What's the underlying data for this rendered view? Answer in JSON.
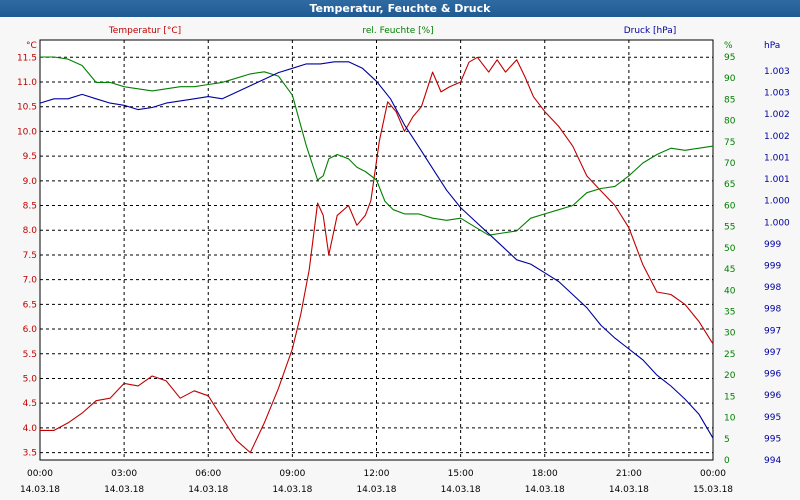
{
  "window": {
    "title": "Temperatur, Feuchte & Druck"
  },
  "chart_data": {
    "type": "line",
    "title": "Temperatur, Feuchte & Druck",
    "colors": {
      "temperature": "#c00000",
      "humidity": "#008000",
      "pressure": "#0000a0",
      "grid": "#000000"
    },
    "x_tick_times": [
      "00:00",
      "03:00",
      "06:00",
      "09:00",
      "12:00",
      "15:00",
      "18:00",
      "21:00",
      "00:00"
    ],
    "x_tick_dates": [
      "14.03.18",
      "14.03.18",
      "14.03.18",
      "14.03.18",
      "14.03.18",
      "14.03.18",
      "14.03.18",
      "14.03.18",
      "15.03.18"
    ],
    "axes": {
      "temperature": {
        "label": "Temperatur [°C]",
        "unit": "°C",
        "range": [
          3.35,
          11.85
        ],
        "ticks": [
          "11.5",
          "11.0",
          "10.5",
          "10.0",
          "9.5",
          "9.0",
          "8.5",
          "8.0",
          "7.5",
          "7.0",
          "6.5",
          "6.0",
          "5.5",
          "5.0",
          "4.5",
          "4.0",
          "3.5"
        ]
      },
      "humidity": {
        "label": "rel. Feuchte [%]",
        "unit": "%",
        "range": [
          0,
          99
        ],
        "ticks": [
          "95",
          "90",
          "85",
          "80",
          "75",
          "70",
          "65",
          "60",
          "55",
          "50",
          "45",
          "40",
          "35",
          "30",
          "25",
          "20",
          "15",
          "10",
          "5",
          "0"
        ]
      },
      "pressure": {
        "label": "Druck [hPa]",
        "unit": "hPa",
        "range": [
          994.0,
          1003.65
        ],
        "ticks": [
          "1.003",
          "1.003",
          "1.002",
          "1.002",
          "1.001",
          "1.001",
          "1.000",
          "1.000",
          "999",
          "999",
          "998",
          "998",
          "997",
          "997",
          "996",
          "996",
          "995",
          "995",
          "994"
        ]
      }
    },
    "series": [
      {
        "name": "Temperatur [°C]",
        "axis": "temperature",
        "hours": [
          0,
          0.5,
          1,
          1.5,
          2,
          2.5,
          3,
          3.5,
          4,
          4.5,
          5,
          5.5,
          6,
          6.5,
          7,
          7.5,
          8,
          8.5,
          9,
          9.3,
          9.6,
          9.9,
          10.1,
          10.3,
          10.6,
          11,
          11.3,
          11.6,
          11.8,
          12.1,
          12.4,
          12.7,
          13,
          13.3,
          13.6,
          14,
          14.3,
          14.6,
          15,
          15.3,
          15.6,
          16,
          16.3,
          16.6,
          17,
          17.3,
          17.6,
          18,
          18.5,
          19,
          19.5,
          20,
          20.5,
          21,
          21.5,
          22,
          22.5,
          23,
          23.5,
          24
        ],
        "values": [
          3.95,
          3.95,
          4.1,
          4.3,
          4.55,
          4.6,
          4.9,
          4.85,
          5.05,
          4.95,
          4.6,
          4.75,
          4.65,
          4.2,
          3.75,
          3.5,
          4.1,
          4.8,
          5.6,
          6.3,
          7.2,
          8.55,
          8.3,
          7.5,
          8.3,
          8.5,
          8.1,
          8.3,
          8.6,
          9.8,
          10.6,
          10.4,
          10.0,
          10.3,
          10.5,
          11.2,
          10.8,
          10.9,
          11.0,
          11.4,
          11.5,
          11.2,
          11.45,
          11.2,
          11.45,
          11.1,
          10.7,
          10.4,
          10.1,
          9.7,
          9.1,
          8.8,
          8.5,
          8.05,
          7.3,
          6.75,
          6.7,
          6.5,
          6.15,
          5.7
        ]
      },
      {
        "name": "rel. Feuchte [%]",
        "axis": "humidity",
        "hours": [
          0,
          0.5,
          1,
          1.5,
          2,
          2.5,
          3,
          3.5,
          4,
          4.5,
          5,
          5.5,
          6,
          6.5,
          7,
          7.5,
          8,
          8.5,
          9,
          9.5,
          9.9,
          10.1,
          10.3,
          10.6,
          11,
          11.3,
          11.6,
          12,
          12.3,
          12.6,
          13,
          13.5,
          14,
          14.5,
          15,
          15.5,
          16,
          16.5,
          17,
          17.5,
          18,
          18.5,
          19,
          19.5,
          20,
          20.5,
          21,
          21.5,
          22,
          22.5,
          23,
          23.5,
          24
        ],
        "values": [
          95,
          95,
          94.5,
          93,
          89,
          89,
          88,
          87.5,
          87,
          87.5,
          88,
          88,
          88.5,
          89,
          90,
          91,
          91.5,
          90.5,
          86,
          74,
          66,
          67,
          71,
          72,
          71,
          69,
          68,
          66,
          61,
          59,
          58,
          58,
          57,
          56.5,
          57,
          55,
          53,
          53.5,
          54,
          57,
          58,
          59,
          60,
          63,
          64,
          64.5,
          67,
          70,
          72,
          73.5,
          73,
          73.5,
          74
        ]
      },
      {
        "name": "Druck [hPa]",
        "axis": "pressure",
        "hours": [
          0,
          0.5,
          1,
          1.5,
          2,
          2.5,
          3,
          3.5,
          4,
          4.5,
          5,
          5.5,
          6,
          6.5,
          7,
          7.5,
          8,
          8.5,
          9,
          9.5,
          10,
          10.5,
          11,
          11.5,
          12,
          12.5,
          13,
          13.5,
          14,
          14.5,
          15,
          15.5,
          16,
          16.5,
          17,
          17.5,
          18,
          18.5,
          19,
          19.5,
          20,
          20.5,
          21,
          21.5,
          22,
          22.5,
          23,
          23.5,
          24
        ],
        "values": [
          1002.2,
          1002.3,
          1002.3,
          1002.4,
          1002.3,
          1002.2,
          1002.15,
          1002.05,
          1002.1,
          1002.2,
          1002.25,
          1002.3,
          1002.35,
          1002.3,
          1002.45,
          1002.6,
          1002.75,
          1002.9,
          1003.0,
          1003.1,
          1003.1,
          1003.15,
          1003.15,
          1003.0,
          1002.7,
          1002.3,
          1001.7,
          1001.2,
          1000.7,
          1000.2,
          999.8,
          999.5,
          999.2,
          998.9,
          998.6,
          998.5,
          998.3,
          998.1,
          997.8,
          997.5,
          997.1,
          996.8,
          996.55,
          996.3,
          995.95,
          995.7,
          995.4,
          995.05,
          994.5
        ]
      }
    ]
  }
}
